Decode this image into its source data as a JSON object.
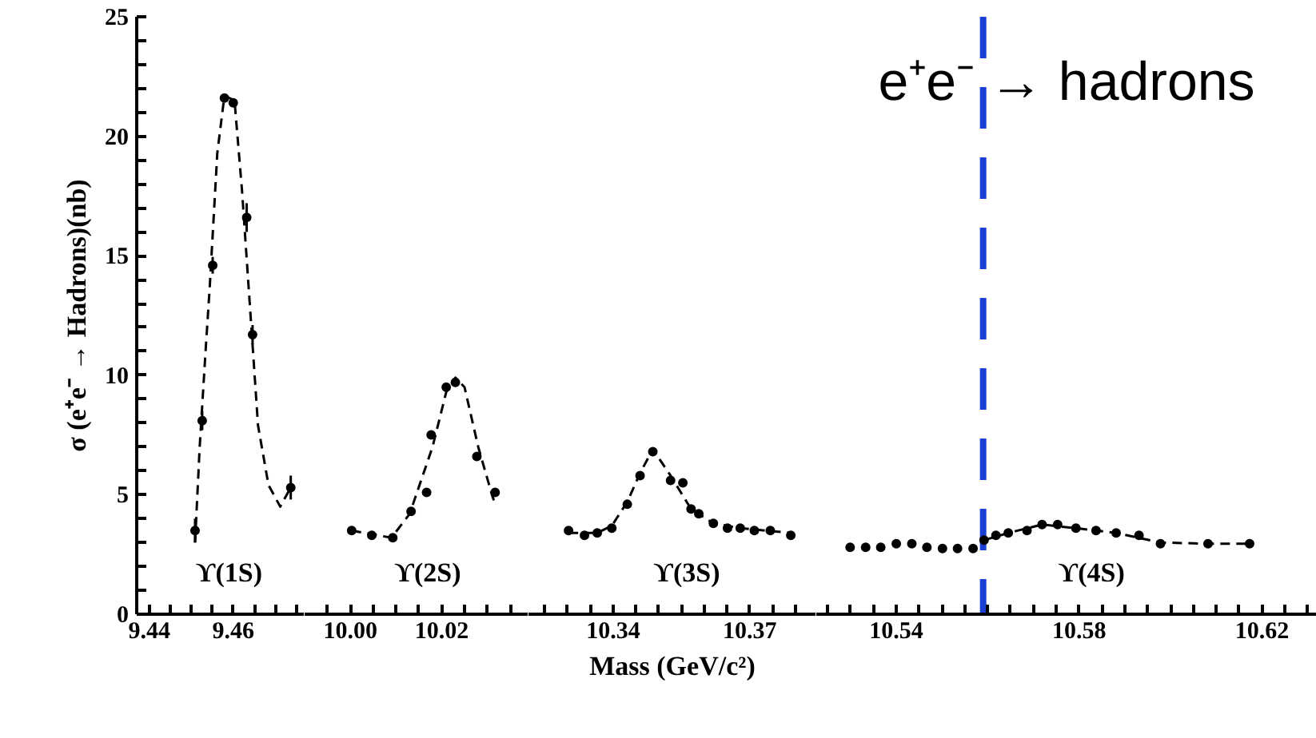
{
  "chart_data": [
    {
      "type": "scatter",
      "ylabel": "σ (e⁺e⁻ → Hadrons)(nb)",
      "xlim": [
        9.437,
        9.477
      ],
      "ylim": [
        0,
        25
      ],
      "grid": false,
      "xticks": [
        9.44,
        {
          "value": 9.445,
          "label": null
        },
        {
          "value": 9.45,
          "label": null
        },
        {
          "value": 9.455,
          "label": null
        },
        9.46,
        {
          "value": 9.465,
          "label": null
        },
        {
          "value": 9.47,
          "label": null
        },
        {
          "value": 9.475,
          "label": null
        }
      ],
      "yticks": [
        0,
        {
          "value": 1,
          "label": null
        },
        {
          "value": 2,
          "label": null
        },
        {
          "value": 3,
          "label": null
        },
        {
          "value": 4,
          "label": null
        },
        5,
        {
          "value": 6,
          "label": null
        },
        {
          "value": 7,
          "label": null
        },
        {
          "value": 8,
          "label": null
        },
        {
          "value": 9,
          "label": null
        },
        10,
        {
          "value": 11,
          "label": null
        },
        {
          "value": 12,
          "label": null
        },
        {
          "value": 13,
          "label": null
        },
        {
          "value": 14,
          "label": null
        },
        15,
        {
          "value": 16,
          "label": null
        },
        {
          "value": 17,
          "label": null
        },
        {
          "value": 18,
          "label": null
        },
        {
          "value": 19,
          "label": null
        },
        20,
        {
          "value": 21,
          "label": null
        },
        {
          "value": 22,
          "label": null
        },
        {
          "value": 23,
          "label": null
        },
        {
          "value": 24,
          "label": null
        },
        25
      ],
      "series": [
        {
          "marker": "circle",
          "color": "#000000",
          "x": [
            9.4509,
            9.4526,
            9.4551,
            9.4579,
            9.46,
            9.4632,
            9.4646,
            9.4737
          ],
          "values": [
            3.5,
            8.1,
            14.6,
            21.6,
            21.4,
            16.6,
            11.7,
            5.3
          ],
          "errors": [
            0.5,
            0.4,
            0.35,
            null,
            null,
            0.6,
            0.4,
            0.5
          ]
        },
        {
          "type": "line",
          "marker": "none",
          "line_style": "dashed",
          "color": "#000000",
          "x": [
            9.4509,
            9.452,
            9.4534,
            9.4544,
            9.4562,
            9.4579,
            9.4603,
            9.4621,
            9.4642,
            9.4659,
            9.4684,
            9.4712,
            9.474
          ],
          "values": [
            3.0,
            7.0,
            11.0,
            13.7,
            19.3,
            21.7,
            21.5,
            17.7,
            12.3,
            7.9,
            5.4,
            4.5,
            5.4
          ]
        }
      ],
      "annotations": [
        "ϒ(1S)"
      ]
    },
    {
      "type": "scatter",
      "xlim": [
        9.99,
        10.039
      ],
      "ylim": [
        0,
        25
      ],
      "grid": false,
      "tick_labels": "x",
      "xticks": [
        {
          "value": 9.995,
          "label": null
        },
        {
          "value": 10.0,
          "label": "10.00"
        },
        {
          "value": 10.005,
          "label": null
        },
        {
          "value": 10.01,
          "label": null
        },
        {
          "value": 10.015,
          "label": null
        },
        10.02,
        {
          "value": 10.025,
          "label": null
        },
        {
          "value": 10.03,
          "label": null
        },
        {
          "value": 10.035,
          "label": null
        }
      ],
      "series": [
        {
          "marker": "circle",
          "color": "#000000",
          "x": [
            10.0003,
            10.0047,
            10.0093,
            10.0133,
            10.0167,
            10.0177,
            10.021,
            10.023,
            10.0277,
            10.0317
          ],
          "values": [
            3.5,
            3.3,
            3.2,
            4.3,
            5.1,
            7.5,
            9.5,
            9.7,
            6.6,
            5.1
          ]
        },
        {
          "type": "line",
          "marker": "none",
          "line_style": "dashed",
          "color": "#000000",
          "x": [
            10.0003,
            10.009,
            10.013,
            10.018,
            10.021,
            10.023,
            10.025,
            10.028,
            10.031,
            10.0317
          ],
          "values": [
            3.5,
            3.2,
            4.2,
            7.0,
            9.3,
            9.9,
            9.5,
            7.0,
            5.0,
            4.6
          ]
        }
      ],
      "annotations": [
        "ϒ(2S)"
      ]
    },
    {
      "type": "scatter",
      "xlabel": "Mass (GeV/c²)",
      "xlim": [
        10.3214,
        10.3846
      ],
      "ylim": [
        0,
        25
      ],
      "grid": false,
      "tick_labels": "x",
      "xticks": [
        {
          "value": 10.325,
          "label": null
        },
        {
          "value": 10.33,
          "label": null
        },
        {
          "value": 10.335,
          "label": null
        },
        10.34,
        {
          "value": 10.345,
          "label": null
        },
        {
          "value": 10.35,
          "label": null
        },
        {
          "value": 10.355,
          "label": null
        },
        {
          "value": 10.36,
          "label": null
        },
        {
          "value": 10.365,
          "label": null
        },
        10.37,
        {
          "value": 10.375,
          "label": null
        },
        {
          "value": 10.38,
          "label": null
        }
      ],
      "series": [
        {
          "marker": "circle",
          "color": "#000000",
          "x": [
            10.3302,
            10.3337,
            10.3365,
            10.3397,
            10.3431,
            10.3459,
            10.3487,
            10.3526,
            10.3553,
            10.3571,
            10.3588,
            10.362,
            10.3651,
            10.3679,
            10.371,
            10.3745,
            10.379
          ],
          "values": [
            3.5,
            3.3,
            3.4,
            3.6,
            4.6,
            5.8,
            6.8,
            5.6,
            5.5,
            4.4,
            4.2,
            3.8,
            3.6,
            3.6,
            3.5,
            3.5,
            3.3
          ]
        },
        {
          "type": "line",
          "marker": "none",
          "line_style": "dashed",
          "color": "#000000",
          "x": [
            10.3302,
            10.3365,
            10.3397,
            10.3431,
            10.3459,
            10.3487,
            10.3526,
            10.3571,
            10.362,
            10.3679,
            10.379
          ],
          "values": [
            3.4,
            3.4,
            3.7,
            4.7,
            5.9,
            6.9,
            5.8,
            4.4,
            3.8,
            3.6,
            3.4
          ]
        }
      ],
      "annotations": [
        "ϒ(3S)"
      ]
    },
    {
      "type": "scatter",
      "xlim": [
        10.5225,
        10.632
      ],
      "ylim": [
        0,
        25
      ],
      "grid": false,
      "tick_labels": "x",
      "xticks": [
        {
          "value": 10.525,
          "label": null
        },
        {
          "value": 10.53,
          "label": null
        },
        {
          "value": 10.535,
          "label": null
        },
        10.54,
        {
          "value": 10.545,
          "label": null
        },
        {
          "value": 10.55,
          "label": null
        },
        {
          "value": 10.555,
          "label": null
        },
        {
          "value": 10.56,
          "label": null
        },
        {
          "value": 10.565,
          "label": null
        },
        {
          "value": 10.57,
          "label": null
        },
        {
          "value": 10.575,
          "label": null
        },
        10.58,
        {
          "value": 10.585,
          "label": null
        },
        {
          "value": 10.59,
          "label": null
        },
        {
          "value": 10.595,
          "label": null
        },
        {
          "value": 10.6,
          "label": null
        },
        {
          "value": 10.605,
          "label": null
        },
        {
          "value": 10.61,
          "label": null
        },
        {
          "value": 10.615,
          "label": null
        },
        10.62,
        {
          "value": 10.625,
          "label": null
        },
        {
          "value": 10.63,
          "label": null
        }
      ],
      "series": [
        {
          "marker": "circle",
          "color": "#000000",
          "x": [
            10.5299,
            10.5333,
            10.5366,
            10.54,
            10.5434,
            10.5467,
            10.5501,
            10.5534,
            10.5568,
            10.5592,
            10.5618,
            10.5645,
            10.5686,
            10.5719,
            10.5753,
            10.5793,
            10.5837,
            10.5881,
            10.5931,
            10.5978,
            10.6082,
            10.6173
          ],
          "values": [
            2.8,
            2.8,
            2.8,
            2.95,
            2.95,
            2.8,
            2.75,
            2.75,
            2.75,
            3.1,
            3.3,
            3.4,
            3.5,
            3.75,
            3.75,
            3.6,
            3.5,
            3.4,
            3.3,
            2.95,
            2.95,
            2.95
          ]
        },
        {
          "type": "line",
          "marker": "none",
          "line_style": "dashed",
          "color": "#000000",
          "x": [
            10.5592,
            10.5645,
            10.5719,
            10.5793,
            10.5881,
            10.5978,
            10.6082,
            10.6173
          ],
          "values": [
            3.1,
            3.4,
            3.75,
            3.6,
            3.4,
            3.0,
            2.95,
            2.95
          ]
        }
      ],
      "ref_lines": [
        {
          "axis": "x",
          "value": 10.559,
          "color": "#1a3fd4",
          "line_style": "dashed"
        }
      ],
      "annotations": [
        "e⁺e⁻ → hadrons",
        "ϒ(4S)"
      ]
    }
  ]
}
